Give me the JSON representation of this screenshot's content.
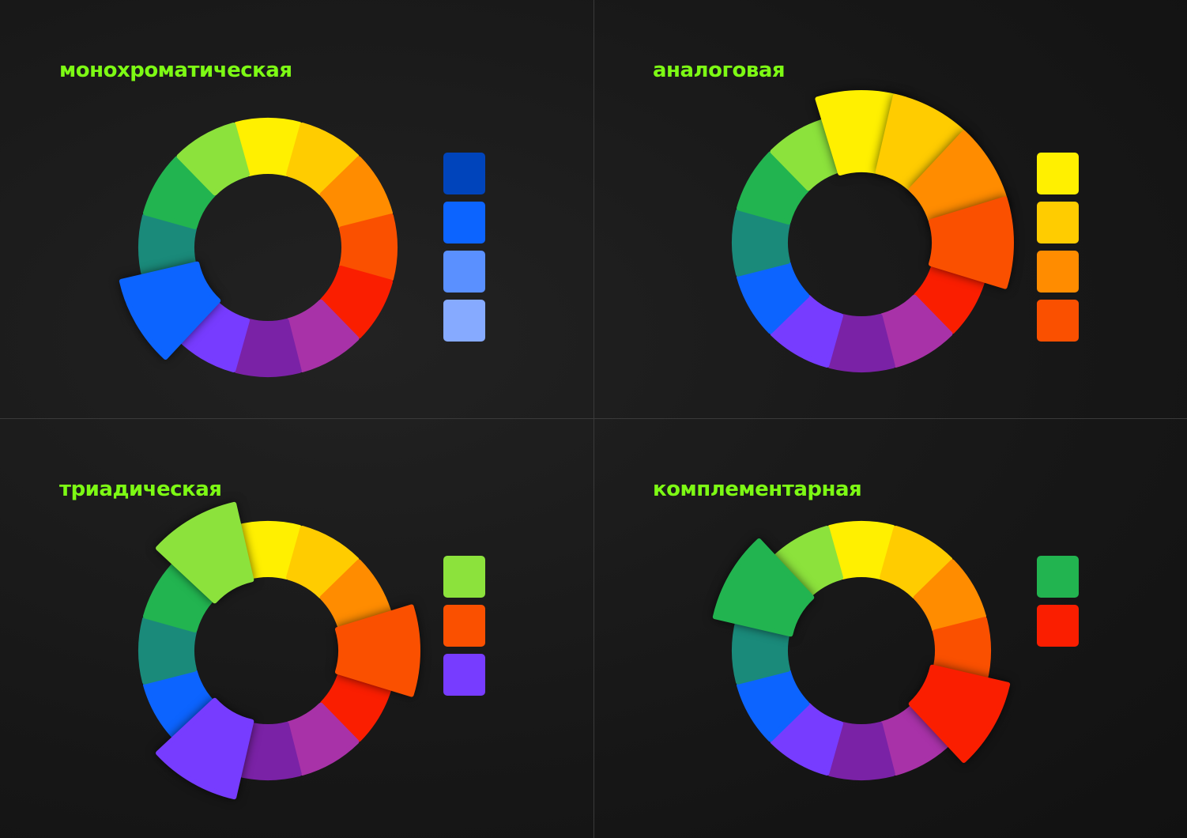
{
  "title_color": "#7dfa14",
  "wheel_colors": [
    {
      "name": "yellow",
      "hex": "#fff000"
    },
    {
      "name": "yellow-orange",
      "hex": "#ffcc00"
    },
    {
      "name": "orange",
      "hex": "#ff8c00"
    },
    {
      "name": "red-orange",
      "hex": "#fa5000"
    },
    {
      "name": "red",
      "hex": "#fa1e00"
    },
    {
      "name": "red-violet",
      "hex": "#a832a8"
    },
    {
      "name": "violet",
      "hex": "#7a22a6"
    },
    {
      "name": "blue-violet",
      "hex": "#773cff"
    },
    {
      "name": "blue",
      "hex": "#0c64ff"
    },
    {
      "name": "blue-green",
      "hex": "#1a8a7a"
    },
    {
      "name": "green",
      "hex": "#22b450"
    },
    {
      "name": "yellow-green",
      "hex": "#8ce23c"
    }
  ],
  "panels": [
    {
      "title": "монохроматическая",
      "highlighted": [
        8
      ],
      "swatches": [
        "#0044bb",
        "#0c64ff",
        "#5a90ff",
        "#86aaff"
      ]
    },
    {
      "title": "аналоговая",
      "highlighted": [
        0,
        1,
        2,
        3
      ],
      "swatches": [
        "#fff000",
        "#ffcc00",
        "#ff8c00",
        "#fa5000"
      ]
    },
    {
      "title": "триадическая",
      "highlighted": [
        11,
        3,
        7
      ],
      "swatches": [
        "#8ce23c",
        "#fa5000",
        "#773cff"
      ]
    },
    {
      "title": "комплементарная",
      "highlighted": [
        10,
        4
      ],
      "swatches": [
        "#22b450",
        "#fa1e00"
      ]
    }
  ]
}
